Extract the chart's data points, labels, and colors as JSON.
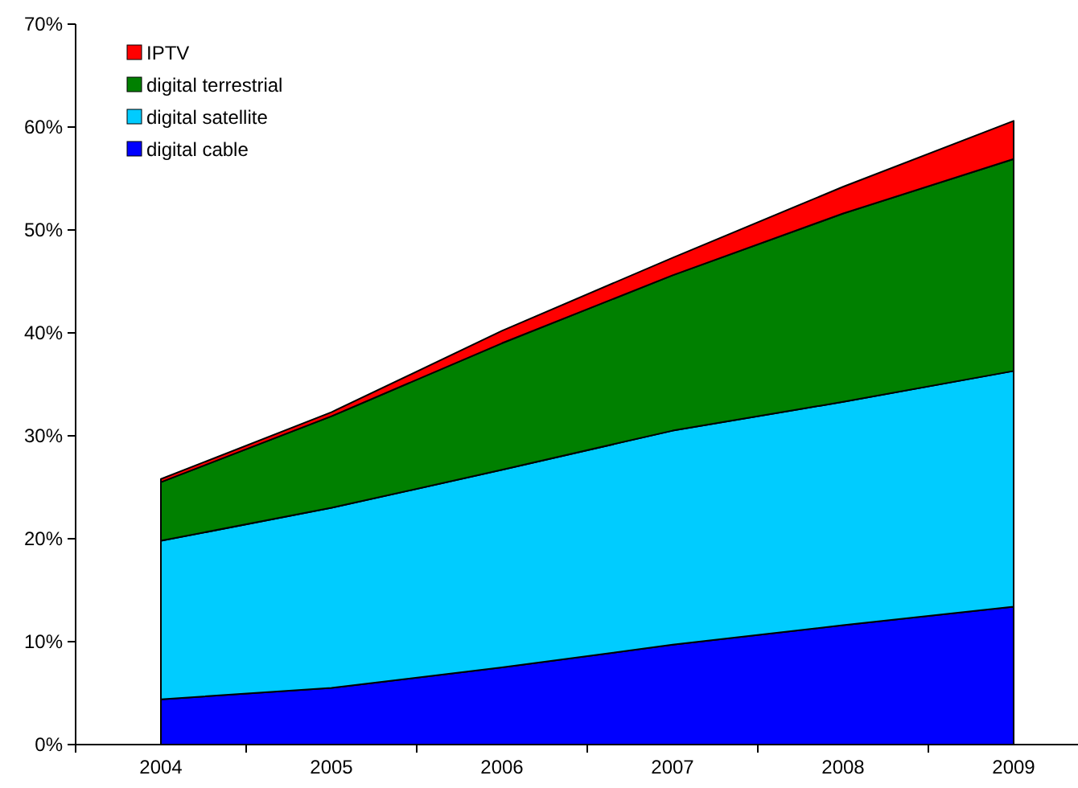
{
  "chart_data": {
    "type": "area",
    "stacked": true,
    "categories": [
      "2004",
      "2005",
      "2006",
      "2007",
      "2008",
      "2009"
    ],
    "series": [
      {
        "name": "digital cable",
        "color": "#0000ff",
        "values": [
          4.4,
          5.5,
          7.5,
          9.7,
          11.6,
          13.4
        ]
      },
      {
        "name": "digital satellite",
        "color": "#00ccff",
        "values": [
          15.4,
          17.5,
          19.2,
          20.8,
          21.7,
          22.9
        ]
      },
      {
        "name": "digital terrestrial",
        "color": "#008000",
        "values": [
          5.7,
          8.9,
          12.3,
          15.1,
          18.3,
          20.6
        ]
      },
      {
        "name": "IPTV",
        "color": "#ff0000",
        "values": [
          0.3,
          0.4,
          1.2,
          1.7,
          2.6,
          3.7
        ]
      }
    ],
    "ylim": [
      0,
      70
    ],
    "yticks": [
      {
        "value": 0,
        "label": "0%"
      },
      {
        "value": 10,
        "label": "10%"
      },
      {
        "value": 20,
        "label": "20%"
      },
      {
        "value": 30,
        "label": "30%"
      },
      {
        "value": 40,
        "label": "40%"
      },
      {
        "value": 50,
        "label": "50%"
      },
      {
        "value": 60,
        "label": "60%"
      },
      {
        "value": 70,
        "label": "70%"
      }
    ],
    "legend": "top left",
    "grid": false
  }
}
